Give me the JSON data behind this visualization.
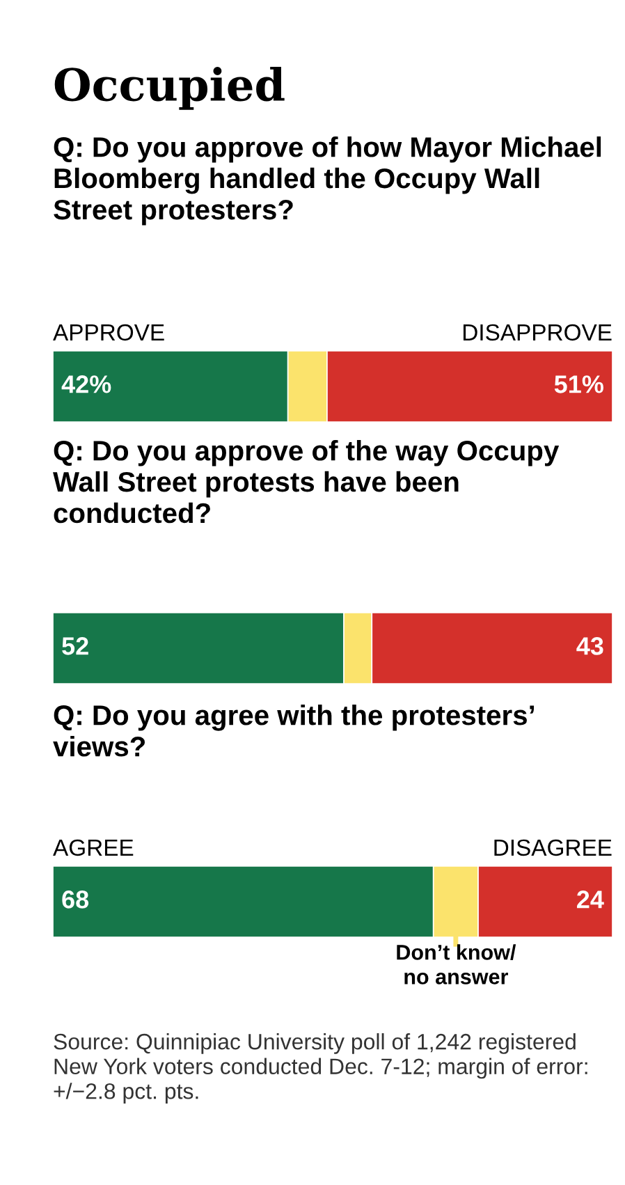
{
  "chart_data": [
    {
      "type": "bar",
      "orientation": "horizontal",
      "stacked": true,
      "title": "Occupied",
      "subtitle": "Q: Do you approve of how Mayor Michael Bloomberg handled the Occupy Wall Street protesters?",
      "categories": [
        null
      ],
      "xlim": [
        0,
        100
      ],
      "series": [
        {
          "name": "APPROVE",
          "color": "#16774a",
          "values": [
            42
          ],
          "value_labels": [
            "42%"
          ]
        },
        {
          "color": "#fbe36c",
          "values": [
            7
          ],
          "value_labels": [
            null
          ]
        },
        {
          "name": "DISAPPROVE",
          "color": "#d4302b",
          "values": [
            51
          ],
          "value_labels": [
            "51%"
          ]
        }
      ]
    },
    {
      "type": "bar",
      "orientation": "horizontal",
      "stacked": true,
      "subtitle": "Q: Do you approve of the way Occupy Wall Street protests have been conducted?",
      "categories": [
        null
      ],
      "xlim": [
        0,
        100
      ],
      "series": [
        {
          "color": "#16774a",
          "values": [
            52
          ],
          "value_labels": [
            "52"
          ]
        },
        {
          "color": "#fbe36c",
          "values": [
            5
          ],
          "value_labels": [
            null
          ]
        },
        {
          "color": "#d4302b",
          "values": [
            43
          ],
          "value_labels": [
            "43"
          ]
        }
      ]
    },
    {
      "type": "bar",
      "orientation": "horizontal",
      "stacked": true,
      "subtitle": "Q: Do you agree with the protesters’ views?",
      "categories": [
        null
      ],
      "xlim": [
        0,
        100
      ],
      "series": [
        {
          "name": "AGREE",
          "color": "#16774a",
          "values": [
            68
          ],
          "value_labels": [
            "68"
          ]
        },
        {
          "name": "Don’t know/\nno answer",
          "color": "#fbe36c",
          "values": [
            8
          ],
          "value_labels": [
            null
          ]
        },
        {
          "name": "DISAGREE",
          "color": "#d4302b",
          "values": [
            24
          ],
          "value_labels": [
            "24"
          ]
        }
      ],
      "annotations": [
        "Source: Quinnipiac University poll of 1,242 registered New York voters conducted Dec. 7-12; margin of error: +/−2.8 pct. pts."
      ]
    }
  ]
}
